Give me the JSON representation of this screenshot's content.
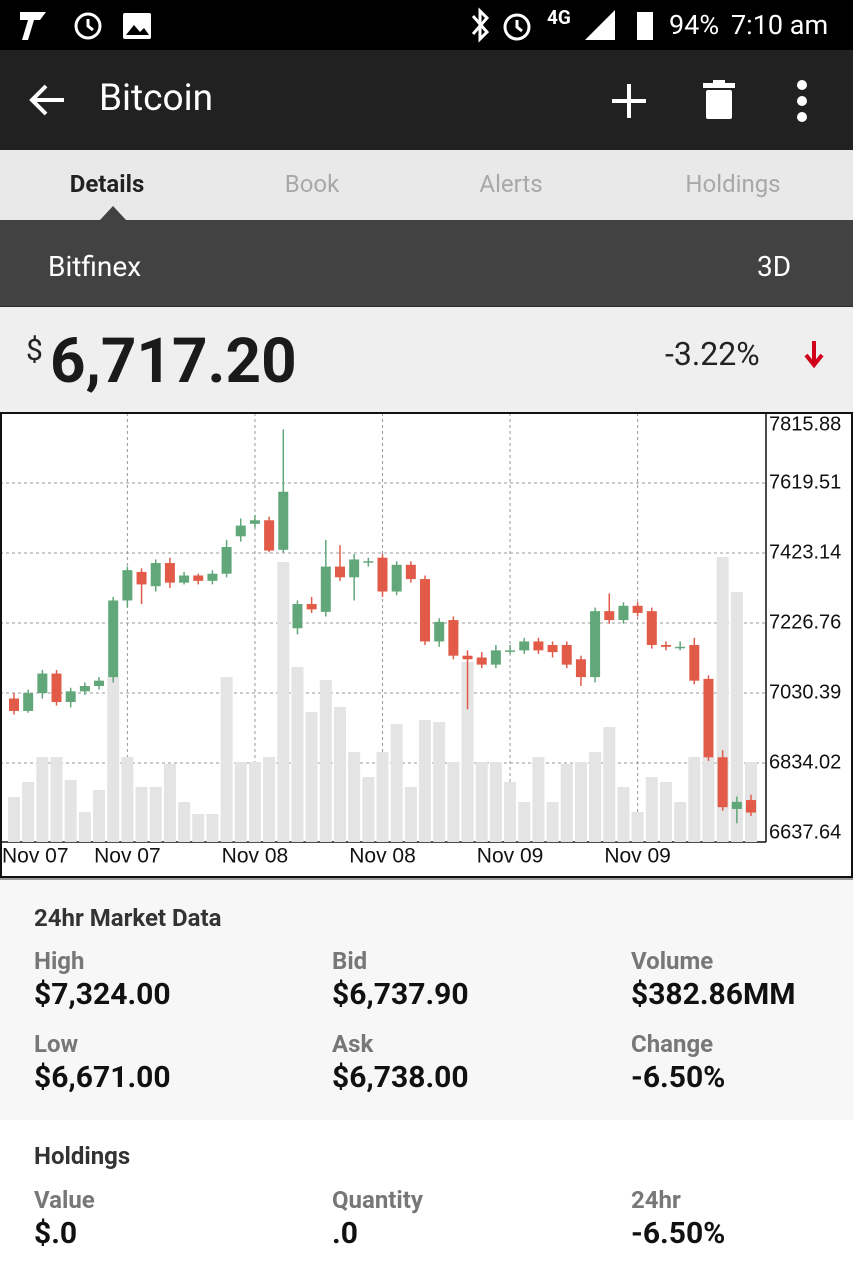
{
  "status_bar": {
    "network": "4G",
    "battery": "94%",
    "time": "7:10 am"
  },
  "app_bar": {
    "title": "Bitcoin"
  },
  "tabs": [
    "Details",
    "Book",
    "Alerts",
    "Holdings"
  ],
  "exchange": {
    "name": "Bitfinex",
    "range": "3D"
  },
  "price": {
    "currency": "$",
    "value": "6,717.20",
    "change": "-3.22%"
  },
  "chart_data": {
    "type": "candlestick",
    "open": [
      7015,
      6980,
      7030,
      7085,
      7005,
      7035,
      7050,
      7075,
      7290,
      7370,
      7330,
      7395,
      7340,
      7360,
      7345,
      7365,
      7470,
      7505,
      7515,
      7432,
      7212,
      7280,
      7258,
      7385,
      7355,
      7400,
      7410,
      7315,
      7390,
      7350,
      7175,
      7235,
      7135,
      7130,
      7110,
      7150,
      7150,
      7175,
      7165,
      7165,
      7125,
      7075,
      7260,
      7235,
      7275,
      7260,
      7165,
      7160,
      7165,
      7070,
      6850,
      6705,
      6730
    ],
    "high": [
      7030,
      7040,
      7095,
      7095,
      7045,
      7060,
      7075,
      7300,
      7385,
      7380,
      7405,
      7410,
      7370,
      7365,
      7375,
      7460,
      7520,
      7530,
      7525,
      7770,
      7290,
      7300,
      7460,
      7445,
      7420,
      7410,
      7420,
      7400,
      7400,
      7360,
      7240,
      7245,
      7150,
      7145,
      7165,
      7165,
      7185,
      7185,
      7175,
      7175,
      7135,
      7270,
      7310,
      7285,
      7285,
      7270,
      7175,
      7175,
      7185,
      7080,
      6870,
      6740,
      6745
    ],
    "low": [
      6970,
      6975,
      7015,
      6995,
      6990,
      7025,
      7040,
      7060,
      7270,
      7280,
      7315,
      7325,
      7335,
      7335,
      7335,
      7355,
      7455,
      7495,
      7425,
      7425,
      7195,
      7255,
      7245,
      7345,
      7290,
      7385,
      7300,
      7305,
      7340,
      7165,
      7160,
      7125,
      6985,
      7100,
      7100,
      7140,
      7140,
      7140,
      7130,
      7100,
      7050,
      7060,
      7225,
      7225,
      7245,
      7155,
      7150,
      7150,
      7055,
      6840,
      6700,
      6665,
      6685
    ],
    "close": [
      6980,
      7030,
      7085,
      7005,
      7035,
      7050,
      7065,
      7290,
      7375,
      7335,
      7395,
      7340,
      7360,
      7345,
      7365,
      7440,
      7500,
      7515,
      7430,
      7595,
      7280,
      7265,
      7385,
      7355,
      7405,
      7400,
      7315,
      7390,
      7350,
      7175,
      7230,
      7135,
      7125,
      7110,
      7150,
      7150,
      7175,
      7150,
      7145,
      7110,
      7075,
      7260,
      7235,
      7275,
      7255,
      7165,
      7160,
      7160,
      7065,
      6850,
      6710,
      6725,
      6695
    ],
    "volume": [
      45,
      60,
      85,
      85,
      62,
      30,
      52,
      165,
      85,
      55,
      55,
      78,
      40,
      28,
      28,
      165,
      80,
      80,
      85,
      280,
      175,
      130,
      162,
      135,
      90,
      65,
      90,
      118,
      55,
      122,
      120,
      80,
      180,
      80,
      80,
      60,
      40,
      85,
      40,
      78,
      80,
      90,
      115,
      55,
      30,
      65,
      60,
      40,
      85,
      85,
      285,
      250,
      80
    ],
    "up_color": "#62a77a",
    "down_color": "#e15b48",
    "volume_color": "#e4e4e4",
    "ylim": [
      6637.64,
      7815.88
    ],
    "yticks": [
      6637.64,
      6834.02,
      7030.39,
      7226.76,
      7423.14,
      7619.51,
      7815.88
    ],
    "y2lim": [
      0,
      429
    ],
    "xticks": [
      {
        "value": 0,
        "label": "Nov 07"
      },
      {
        "value": 8,
        "label": "Nov 07"
      },
      {
        "value": 17,
        "label": "Nov 08"
      },
      {
        "value": 26,
        "label": "Nov 08"
      },
      {
        "value": 35,
        "label": "Nov 09"
      },
      {
        "value": 44,
        "label": "Nov 09"
      }
    ],
    "grid": true
  },
  "market_data": {
    "title": "24hr Market Data",
    "items": [
      {
        "label": "High",
        "value": "$7,324.00"
      },
      {
        "label": "Bid",
        "value": "$6,737.90"
      },
      {
        "label": "Volume",
        "value": "$382.86MM"
      },
      {
        "label": "Low",
        "value": "$6,671.00"
      },
      {
        "label": "Ask",
        "value": "$6,738.00"
      },
      {
        "label": "Change",
        "value": "-6.50%"
      }
    ]
  },
  "holdings": {
    "title": "Holdings",
    "items": [
      {
        "label": "Value",
        "value": "$.0"
      },
      {
        "label": "Quantity",
        "value": ".0"
      },
      {
        "label": "24hr",
        "value": "-6.50%"
      }
    ]
  }
}
